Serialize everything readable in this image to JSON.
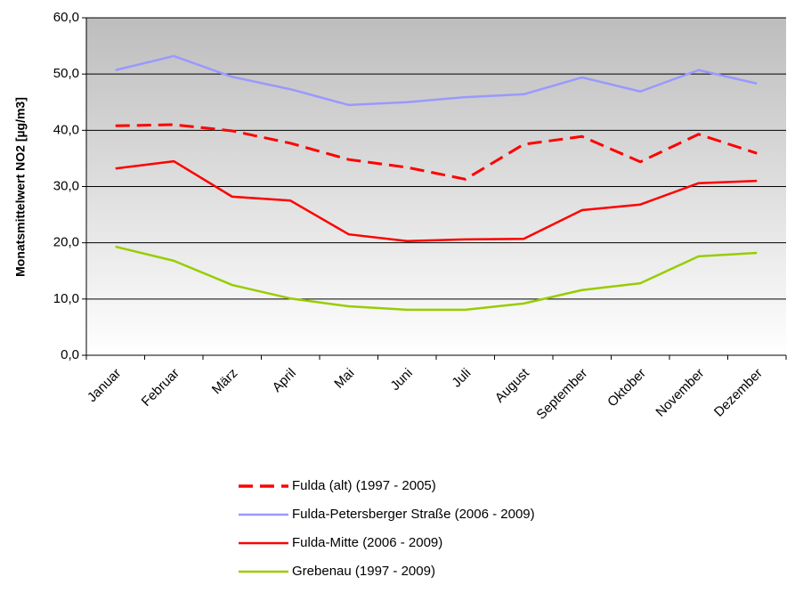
{
  "chart_data": {
    "type": "line",
    "y_axis_label": "Monatsmittelwert NO2 [µg/m3]",
    "categories": [
      "Januar",
      "Februar",
      "März",
      "April",
      "Mai",
      "Juni",
      "Juli",
      "August",
      "September",
      "Oktober",
      "November",
      "Dezember"
    ],
    "series": [
      {
        "name": "Fulda (alt) (1997 - 2005)",
        "color": "#ff0000",
        "dashed": true,
        "values": [
          40.8,
          41.0,
          39.9,
          37.7,
          34.8,
          33.4,
          31.3,
          37.5,
          38.9,
          34.4,
          39.3,
          35.9
        ]
      },
      {
        "name": "Fulda-Petersberger Straße (2006 - 2009)",
        "color": "#9999ff",
        "dashed": false,
        "values": [
          50.7,
          53.2,
          49.5,
          47.3,
          44.5,
          45.0,
          45.9,
          46.4,
          49.4,
          46.9,
          50.7,
          48.3
        ]
      },
      {
        "name": "Fulda-Mitte (2006 - 2009)",
        "color": "#ff0000",
        "dashed": false,
        "values": [
          33.2,
          34.5,
          28.2,
          27.5,
          21.5,
          20.3,
          20.6,
          20.7,
          25.8,
          26.8,
          30.6,
          31.0
        ]
      },
      {
        "name": "Grebenau (1997 - 2009)",
        "color": "#99cc00",
        "dashed": false,
        "values": [
          19.3,
          16.8,
          12.5,
          10.1,
          8.7,
          8.1,
          8.1,
          9.2,
          11.6,
          12.8,
          17.6,
          18.2
        ]
      }
    ],
    "ylim": [
      0,
      60
    ],
    "yticks": [
      {
        "value": 0,
        "label": "0,0"
      },
      {
        "value": 10,
        "label": "10,0"
      },
      {
        "value": 20,
        "label": "20,0"
      },
      {
        "value": 30,
        "label": "30,0"
      },
      {
        "value": 40,
        "label": "40,0"
      },
      {
        "value": 50,
        "label": "50,0"
      },
      {
        "value": 60,
        "label": "60,0"
      }
    ],
    "grid": true,
    "legend": "bottom"
  }
}
